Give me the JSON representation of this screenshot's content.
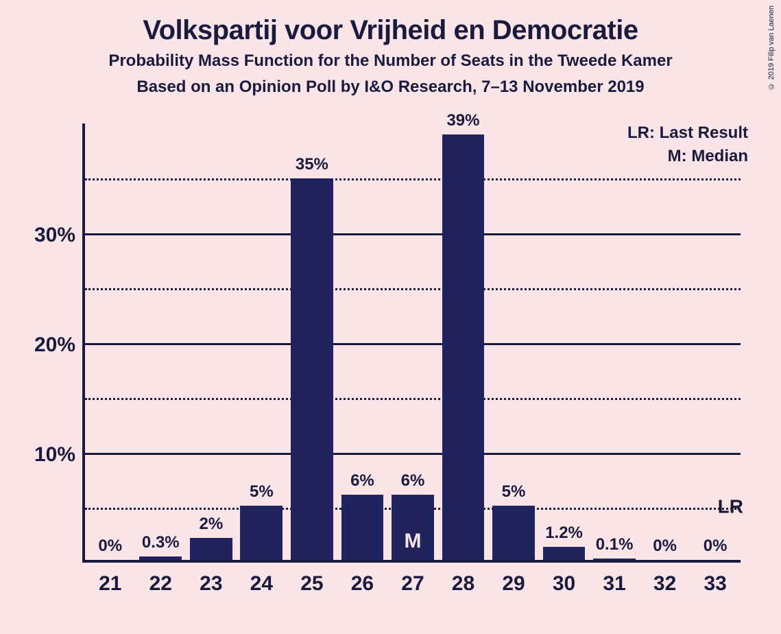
{
  "title": "Volkspartij voor Vrijheid en Democratie",
  "subtitle1": "Probability Mass Function for the Number of Seats in the Tweede Kamer",
  "subtitle2": "Based on an Opinion Poll by I&O Research, 7–13 November 2019",
  "legend": {
    "lr": "LR: Last Result",
    "m": "M: Median"
  },
  "copyright": "© 2019 Filip van Laenen",
  "chart": {
    "type": "bar",
    "background_color": "#f9e5e7",
    "bar_color": "#21235e",
    "axis_color": "#1a1a3e",
    "text_color": "#1a1a3e",
    "grid_color": "#1a1a3e",
    "y_axis": {
      "min": 0,
      "max": 40,
      "major_ticks": [
        10,
        20,
        30
      ],
      "major_labels": [
        "10%",
        "20%",
        "30%"
      ],
      "minor_ticks": [
        5,
        15,
        25,
        35
      ]
    },
    "lr_value": 5,
    "lr_text": "LR",
    "categories": [
      "21",
      "22",
      "23",
      "24",
      "25",
      "26",
      "27",
      "28",
      "29",
      "30",
      "31",
      "32",
      "33"
    ],
    "values": [
      0,
      0.3,
      2,
      5,
      35,
      6,
      6,
      39,
      5,
      1.2,
      0.1,
      0,
      0
    ],
    "value_labels": [
      "0%",
      "0.3%",
      "2%",
      "5%",
      "35%",
      "6%",
      "6%",
      "39%",
      "5%",
      "1.2%",
      "0.1%",
      "0%",
      "0%"
    ],
    "median_index": 6,
    "median_text": "M",
    "title_fontsize": 40,
    "subtitle_fontsize": 24,
    "axis_label_fontsize": 30,
    "value_label_fontsize": 24,
    "bar_width_ratio": 0.84
  }
}
